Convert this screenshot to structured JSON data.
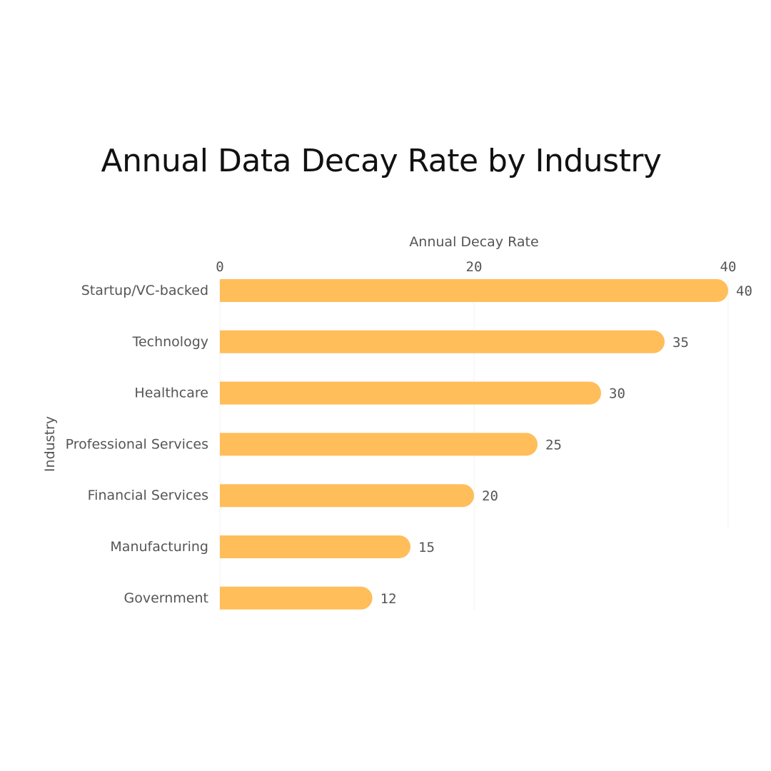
{
  "chart_data": {
    "type": "bar",
    "orientation": "horizontal",
    "title": "Annual Data Decay Rate by Industry",
    "xlabel": "Annual Decay Rate",
    "ylabel": "Industry",
    "categories": [
      "Startup/VC-backed",
      "Technology",
      "Healthcare",
      "Professional Services",
      "Financial Services",
      "Manufacturing",
      "Government"
    ],
    "values": [
      40,
      35,
      30,
      25,
      20,
      15,
      12
    ],
    "xlim": [
      0,
      40
    ],
    "xticks": [
      0,
      20,
      40
    ],
    "bar_color": "#FFBE5A",
    "grid": true,
    "x_axis_position": "top"
  }
}
